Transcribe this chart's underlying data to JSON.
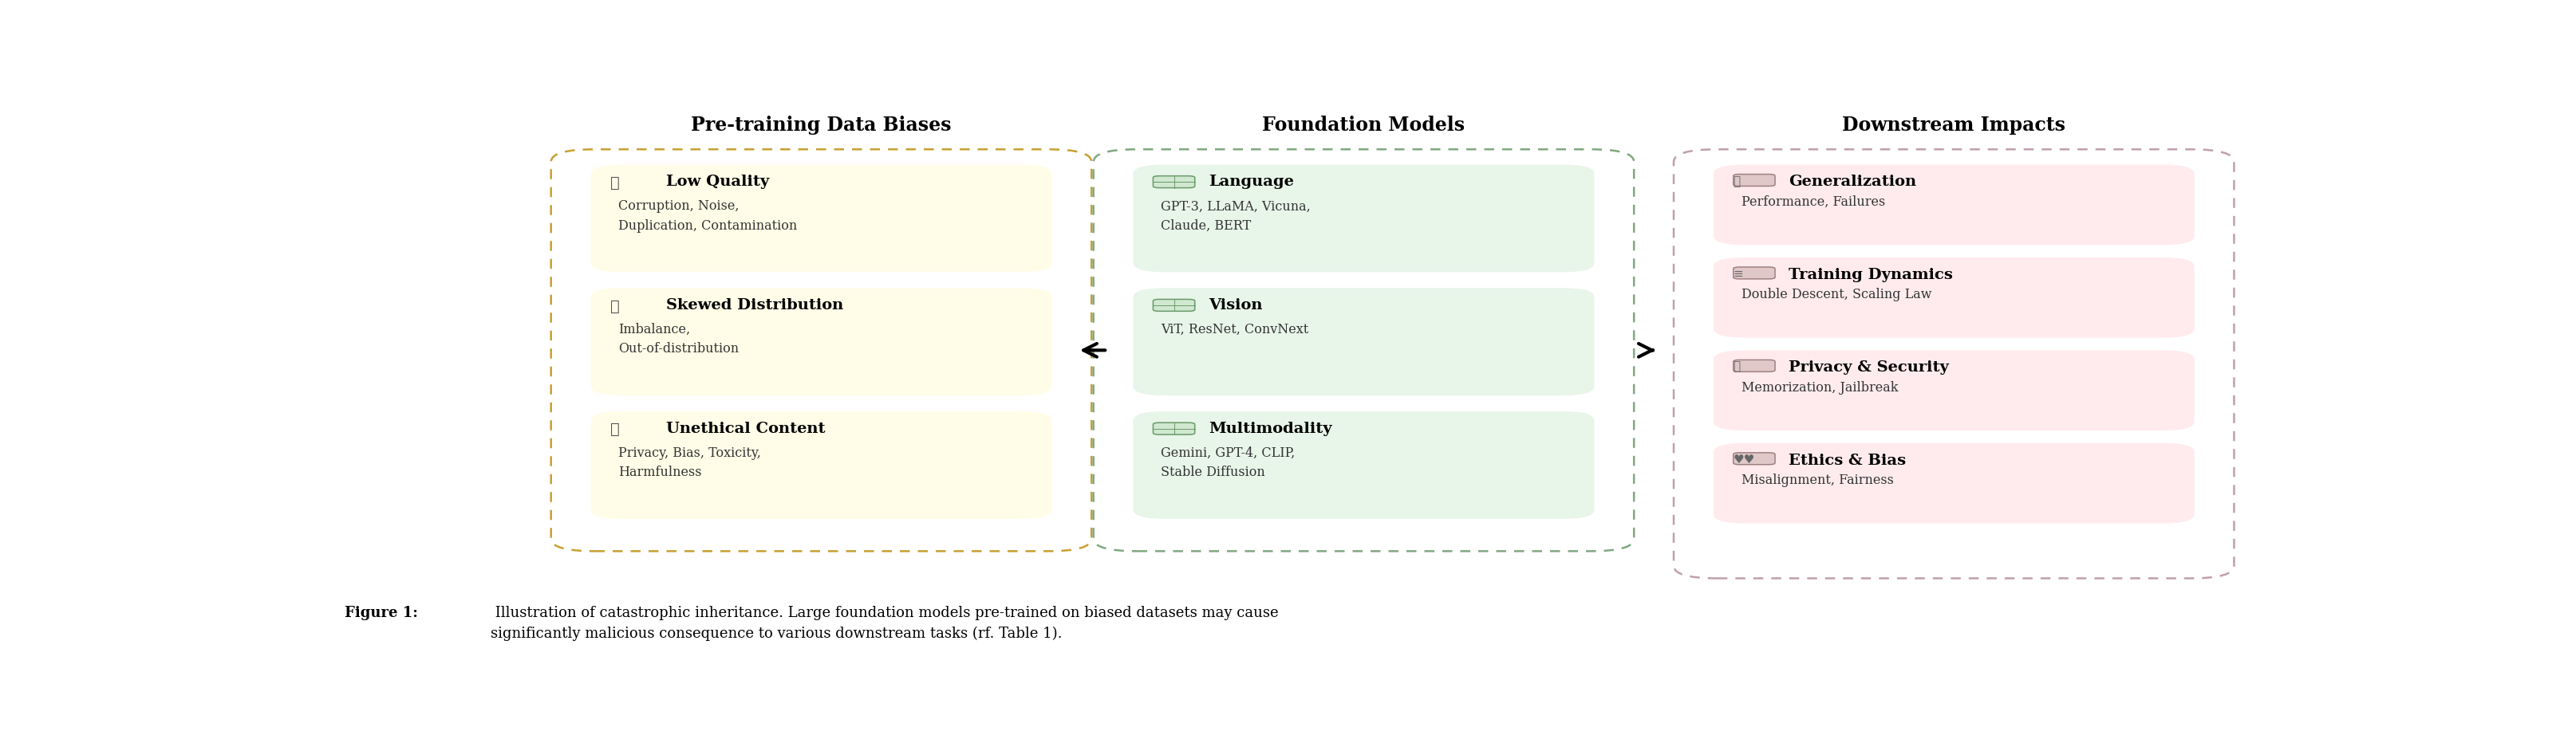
{
  "title_col1": "Pre-training Data Biases",
  "title_col2": "Foundation Models",
  "title_col3": "Downstream Impacts",
  "col1_bg": "#FFFDE7",
  "col1_border": "#C8A030",
  "col2_bg": "#E8F5E9",
  "col2_border": "#80A880",
  "col3_bg": "#FFEBEE",
  "col3_border": "#C0A0A8",
  "col1_icons": [
    "⚙",
    "⚖",
    "♟"
  ],
  "col1_items": [
    {
      "title": "Low Quality",
      "desc": "Corruption, Noise,\nDuplication, Contamination"
    },
    {
      "title": "Skewed Distribution",
      "desc": "Imbalance,\nOut-of-distribution"
    },
    {
      "title": "Unethical Content",
      "desc": "Privacy, Bias, Toxicity,\nHarmfulness"
    }
  ],
  "col2_items": [
    {
      "title": "Language",
      "desc": "GPT-3, LLaMA, Vicuna,\nClaude, BERT"
    },
    {
      "title": "Vision",
      "desc": "ViT, ResNet, ConvNext"
    },
    {
      "title": "Multimodality",
      "desc": "Gemini, GPT-4, CLIP,\nStable Diffusion"
    }
  ],
  "col3_icons": [
    "⚓",
    "≡",
    "⛓",
    "♥♥"
  ],
  "col3_items": [
    {
      "title": "Generalization",
      "desc": "Performance, Failures"
    },
    {
      "title": "Training Dynamics",
      "desc": "Double Descent, Scaling Law"
    },
    {
      "title": "Privacy & Security",
      "desc": "Memorization, Jailbreak"
    },
    {
      "title": "Ethics & Bias",
      "desc": "Misalignment, Fairness"
    }
  ],
  "caption_bold": "Figure 1:",
  "caption_rest": " Illustration of catastrophic inheritance. Large foundation models pre-trained on biased datasets may cause\nsignificantly malicious consequence to various downstream tasks (rf. Table 1).",
  "fig_width": 32.14,
  "fig_height": 9.22,
  "bg_color": "#FFFFFF"
}
